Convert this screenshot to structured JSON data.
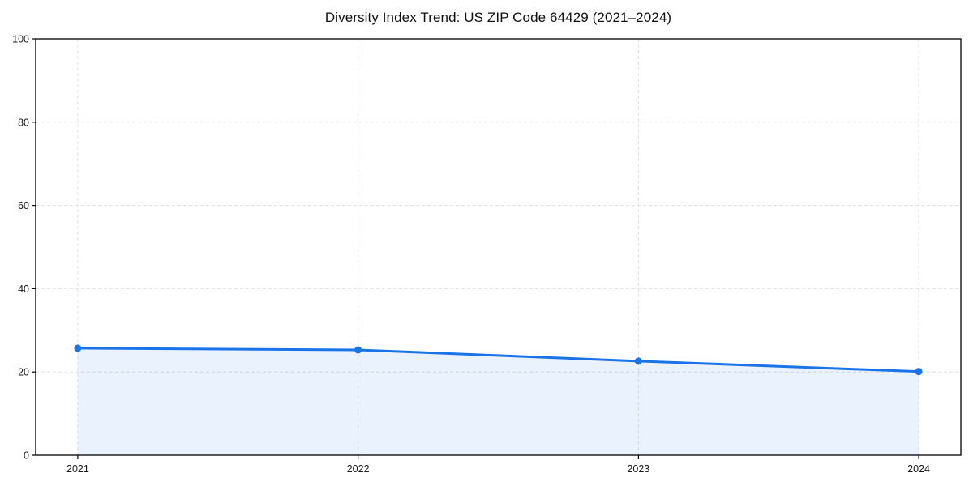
{
  "chart_data": {
    "type": "area",
    "title": "Diversity Index Trend: US ZIP Code 64429 (2021–2024)",
    "categories": [
      "2021",
      "2022",
      "2023",
      "2024"
    ],
    "series": [
      {
        "name": "Diversity Index",
        "values": [
          25.7,
          25.3,
          22.6,
          20.1
        ]
      }
    ],
    "xlabel": "",
    "ylabel": "",
    "ylim": [
      0,
      100
    ],
    "yticks": [
      0,
      20,
      40,
      60,
      80,
      100
    ],
    "grid": {
      "horizontal": true,
      "vertical": true,
      "style": "dashed"
    },
    "legend": "none",
    "marker": "circle",
    "area_fill": true,
    "fill_opacity": 0.09,
    "colors": {
      "line": "#1a73e8",
      "marker": "#1a73e8",
      "grid": "#e0e0e0",
      "spine": "#000000",
      "tick_text": "#1a1a1a",
      "title_text": "#111111",
      "background": "#ffffff"
    }
  }
}
